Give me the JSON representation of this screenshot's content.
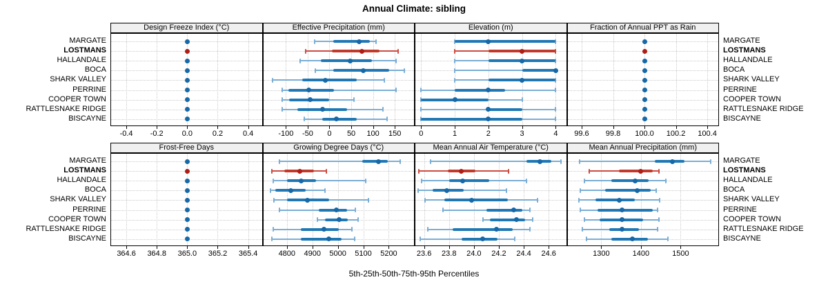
{
  "title": "Annual Climate: sibling",
  "caption": "5th-25th-50th-75th-95th Percentiles",
  "colors": {
    "blue_dot": "#1668a7",
    "blue_bar": "#1f77b4",
    "blue_whisker": "#7aadd4",
    "red_dot": "#ad1f16",
    "red_bar": "#c0392b",
    "red_whisker": "#cd4a40",
    "grid": "#c9c9c9",
    "strip_bg": "#f0f0f0",
    "border": "#000000"
  },
  "chart_data": {
    "type": "dot-whisker",
    "percentiles": [
      5,
      25,
      50,
      75,
      95
    ],
    "stations": [
      "MARGATE",
      "LOSTMANS",
      "HALLANDALE",
      "BOCA",
      "SHARK VALLEY",
      "PERRINE",
      "COOPER TOWN",
      "RATTLESNAKE RIDGE",
      "BISCAYNE"
    ],
    "highlight": "LOSTMANS",
    "legend_position": "none",
    "grid": true,
    "panels": [
      {
        "title": "Design Freeze Index (°C)",
        "row": 0,
        "col": 0,
        "xlim": [
          -0.5,
          0.49
        ],
        "tick_values": [
          -0.4,
          -0.2,
          0.0,
          0.2,
          0.4
        ],
        "tick_labels": [
          "-0.4",
          "-0.2",
          "0.0",
          "0.2",
          "0.4"
        ],
        "values": [
          [
            0,
            0,
            0,
            0,
            0
          ],
          [
            0,
            0,
            0,
            0,
            0
          ],
          [
            0,
            0,
            0,
            0,
            0
          ],
          [
            0,
            0,
            0,
            0,
            0
          ],
          [
            0,
            0,
            0,
            0,
            0
          ],
          [
            0,
            0,
            0,
            0,
            0
          ],
          [
            0,
            0,
            0,
            0,
            0
          ],
          [
            0,
            0,
            0,
            0,
            0
          ],
          [
            0,
            0,
            0,
            0,
            0
          ]
        ]
      },
      {
        "title": "Effective Precipitation (mm)",
        "row": 0,
        "col": 1,
        "xlim": [
          -152,
          194
        ],
        "tick_values": [
          -100,
          -50,
          0,
          50,
          100,
          150
        ],
        "tick_labels": [
          "-100",
          "-50",
          "0",
          "50",
          "100",
          "150"
        ],
        "values": [
          [
            -34,
            9,
            68,
            93,
            107
          ],
          [
            -55,
            5,
            75,
            115,
            157
          ],
          [
            -67,
            -19,
            47,
            98,
            153
          ],
          [
            -33,
            9,
            77,
            137,
            172
          ],
          [
            -131,
            -62,
            -9,
            62,
            126
          ],
          [
            -108,
            -94,
            -47,
            11,
            153
          ],
          [
            -109,
            -92,
            -45,
            0,
            56
          ],
          [
            -108,
            -73,
            -16,
            41,
            123
          ],
          [
            -58,
            -16,
            16,
            62,
            133
          ]
        ]
      },
      {
        "title": "Elevation (m)",
        "row": 0,
        "col": 2,
        "xlim": [
          -0.17,
          4.31
        ],
        "tick_values": [
          0,
          1,
          2,
          3,
          4
        ],
        "tick_labels": [
          "0",
          "1",
          "2",
          "3",
          "4"
        ],
        "values": [
          [
            1,
            1,
            2,
            4,
            4
          ],
          [
            1,
            2,
            3,
            4,
            4
          ],
          [
            1,
            2,
            3,
            4,
            4
          ],
          [
            1,
            3,
            4,
            4,
            4
          ],
          [
            1,
            2,
            3,
            4,
            4
          ],
          [
            0,
            1,
            2,
            2.5,
            4
          ],
          [
            0,
            0,
            1,
            2,
            3
          ],
          [
            0,
            2,
            2,
            3,
            4
          ],
          [
            0,
            0,
            2,
            3,
            4
          ]
        ]
      },
      {
        "title": "Fraction of Annual PPT as Rain",
        "row": 0,
        "col": 3,
        "xlim": [
          99.51,
          100.47
        ],
        "tick_values": [
          99.6,
          99.8,
          100.0,
          100.2,
          100.4
        ],
        "tick_labels": [
          "99.6",
          "99.8",
          "100.0",
          "100.2",
          "100.4"
        ],
        "values": [
          [
            100,
            100,
            100,
            100,
            100
          ],
          [
            100,
            100,
            100,
            100,
            100
          ],
          [
            100,
            100,
            100,
            100,
            100
          ],
          [
            100,
            100,
            100,
            100,
            100
          ],
          [
            100,
            100,
            100,
            100,
            100
          ],
          [
            100,
            100,
            100,
            100,
            100
          ],
          [
            100,
            100,
            100,
            100,
            100
          ],
          [
            100,
            100,
            100,
            100,
            100
          ],
          [
            100,
            100,
            100,
            100,
            100
          ]
        ]
      },
      {
        "title": "Frost-Free Days",
        "row": 1,
        "col": 0,
        "xlim": [
          364.5,
          365.49
        ],
        "tick_values": [
          364.6,
          364.8,
          365.0,
          365.2,
          365.4
        ],
        "tick_labels": [
          "364.6",
          "364.8",
          "365.0",
          "365.2",
          "365.4"
        ],
        "values": [
          [
            365,
            365,
            365,
            365,
            365
          ],
          [
            365,
            365,
            365,
            365,
            365
          ],
          [
            365,
            365,
            365,
            365,
            365
          ],
          [
            365,
            365,
            365,
            365,
            365
          ],
          [
            365,
            365,
            365,
            365,
            365
          ],
          [
            365,
            365,
            365,
            365,
            365
          ],
          [
            365,
            365,
            365,
            365,
            365
          ],
          [
            365,
            365,
            365,
            365,
            365
          ],
          [
            365,
            365,
            365,
            365,
            365
          ]
        ]
      },
      {
        "title": "Growing Degree Days (°C)",
        "row": 1,
        "col": 1,
        "xlim": [
          4707,
          5299
        ],
        "tick_values": [
          4800,
          4900,
          5000,
          5100,
          5200
        ],
        "tick_labels": [
          "4800",
          "4900",
          "5000",
          "5100",
          "5200"
        ],
        "values": [
          [
            4770,
            5095,
            5160,
            5195,
            5245
          ],
          [
            4740,
            4790,
            4850,
            4905,
            4955
          ],
          [
            4745,
            4800,
            4855,
            4915,
            5110
          ],
          [
            4735,
            4755,
            4815,
            4875,
            4950
          ],
          [
            4750,
            4800,
            4880,
            4965,
            5120
          ],
          [
            4770,
            4925,
            4995,
            5035,
            5070
          ],
          [
            4920,
            4950,
            5005,
            5040,
            5080
          ],
          [
            4745,
            4855,
            4945,
            5005,
            5055
          ],
          [
            4740,
            4855,
            4965,
            5015,
            5065
          ]
        ]
      },
      {
        "title": "Mean Annual Air Temperature (°C)",
        "row": 1,
        "col": 2,
        "xlim": [
          23.53,
          24.74
        ],
        "tick_values": [
          23.6,
          23.8,
          24.0,
          24.2,
          24.4,
          24.6
        ],
        "tick_labels": [
          "23.6",
          "23.8",
          "24.0",
          "24.2",
          "24.4",
          "24.6"
        ],
        "values": [
          [
            23.65,
            24.42,
            24.53,
            24.62,
            24.7
          ],
          [
            23.56,
            23.79,
            23.9,
            24.01,
            24.28
          ],
          [
            23.58,
            23.8,
            23.91,
            24.12,
            24.42
          ],
          [
            23.55,
            23.67,
            23.78,
            23.92,
            24.26
          ],
          [
            23.61,
            23.76,
            23.98,
            24.27,
            24.51
          ],
          [
            23.75,
            24.1,
            24.32,
            24.39,
            24.45
          ],
          [
            24.07,
            24.13,
            24.34,
            24.41,
            24.47
          ],
          [
            23.63,
            23.83,
            24.18,
            24.31,
            24.45
          ],
          [
            23.57,
            23.9,
            24.07,
            24.19,
            24.33
          ]
        ]
      },
      {
        "title": "Mean Annual Precipitation (mm)",
        "row": 1,
        "col": 3,
        "xlim": [
          1215,
          1595
        ],
        "tick_values": [
          1300,
          1400,
          1500
        ],
        "tick_labels": [
          "1300",
          "1400",
          "1500"
        ],
        "values": [
          [
            1245,
            1435,
            1480,
            1510,
            1575
          ],
          [
            1270,
            1345,
            1400,
            1430,
            1445
          ],
          [
            1258,
            1325,
            1385,
            1420,
            1462
          ],
          [
            1248,
            1310,
            1390,
            1425,
            1438
          ],
          [
            1244,
            1285,
            1345,
            1385,
            1448
          ],
          [
            1248,
            1290,
            1352,
            1430,
            1442
          ],
          [
            1258,
            1295,
            1352,
            1405,
            1445
          ],
          [
            1252,
            1320,
            1352,
            1395,
            1442
          ],
          [
            1262,
            1325,
            1378,
            1418,
            1468
          ]
        ]
      }
    ]
  }
}
